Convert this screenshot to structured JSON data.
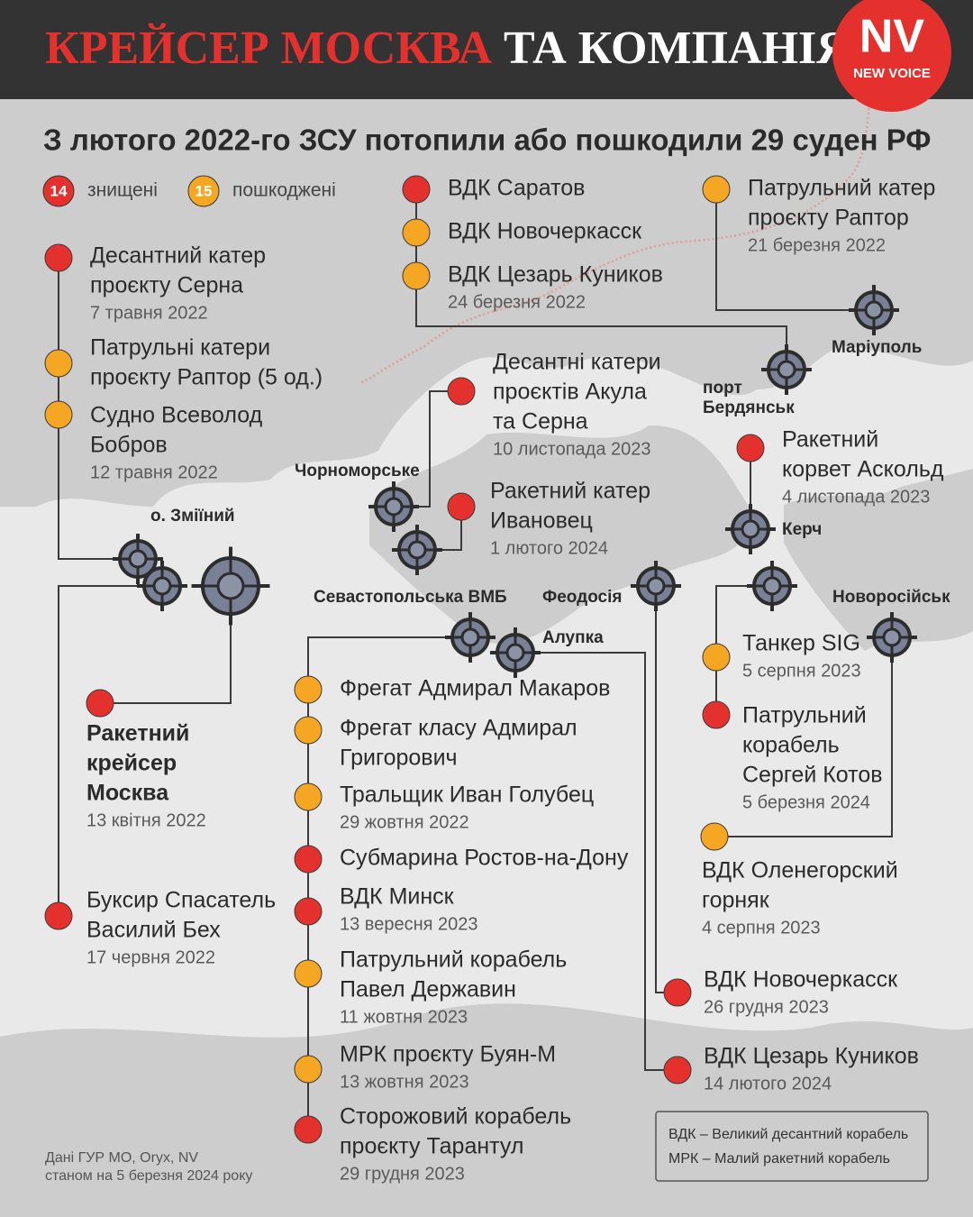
{
  "header": {
    "title_red": "КРЕЙСЕР МОСКВА",
    "title_white": "ТА КОМПАНІЯ",
    "logo": "NV",
    "logo_sub": "NEW VOICE"
  },
  "subtitle": "З лютого 2022-го ЗСУ потопили або пошкодили 29 суден РФ",
  "legend": [
    {
      "count": 14,
      "label": "знищені",
      "color": "#e5312e"
    },
    {
      "count": 15,
      "label": "пошкоджені",
      "color": "#f5a623"
    }
  ],
  "places": [
    {
      "lines": [
        "Маріуполь"
      ]
    },
    {
      "lines": [
        "порт",
        "Бердянськ"
      ]
    },
    {
      "lines": [
        "Чорноморське"
      ]
    },
    {
      "lines": [
        "о. Зміїний"
      ]
    },
    {
      "lines": [
        "Керч"
      ]
    },
    {
      "lines": [
        "Севастопольська ВМБ"
      ]
    },
    {
      "lines": [
        "Феодосія"
      ]
    },
    {
      "lines": [
        "Алупка"
      ]
    },
    {
      "lines": [
        "Новоросійськ"
      ]
    }
  ],
  "ships": [
    {
      "lines": [
        "Десантний катер",
        "проєкту Серна"
      ],
      "date": "7 травня 2022",
      "color": "#e5312e"
    },
    {
      "lines": [
        "Патрульні катери",
        "проєкту Раптор (5 од.)"
      ],
      "color": "#f5a623"
    },
    {
      "lines": [
        "Судно Всеволод",
        "Бобров"
      ],
      "date": "12 травня 2022",
      "color": "#f5a623"
    },
    {
      "lines": [
        "Ракетний",
        "крейсер",
        "Москва"
      ],
      "date": "13 квітня 2022",
      "color": "#e5312e",
      "bold": true
    },
    {
      "lines": [
        "Буксир Спасатель",
        "Василий Бех"
      ],
      "date": "17 червня 2022",
      "color": "#e5312e"
    },
    {
      "lines": [
        "ВДК Саратов"
      ],
      "color": "#e5312e"
    },
    {
      "lines": [
        "ВДК Новочеркасск"
      ],
      "color": "#f5a623"
    },
    {
      "lines": [
        "ВДК Цезарь Куников"
      ],
      "date": "24 березня 2022",
      "color": "#f5a623"
    },
    {
      "lines": [
        "Патрульний катер",
        "проєкту Раптор"
      ],
      "date": "21 березня 2022",
      "color": "#f5a623"
    },
    {
      "lines": [
        "Десантні катери",
        "проєктів Акула",
        "та Серна"
      ],
      "date": "10 листопада 2023",
      "color": "#e5312e"
    },
    {
      "lines": [
        "Ракетний катер",
        "Ивановец"
      ],
      "date": "1 лютого 2024",
      "color": "#e5312e"
    },
    {
      "lines": [
        "Ракетний",
        "корвет Аскольд"
      ],
      "date": "4 листопада 2023",
      "color": "#e5312e"
    },
    {
      "lines": [
        "Фрегат Адмирал Макаров"
      ],
      "color": "#f5a623"
    },
    {
      "lines": [
        "Фрегат класу Адмирал",
        "Григорович"
      ],
      "color": "#f5a623"
    },
    {
      "lines": [
        "Тральщик Иван Голубец"
      ],
      "date": "29 жовтня 2022",
      "color": "#f5a623"
    },
    {
      "lines": [
        "Субмарина Ростов-на-Дону"
      ],
      "color": "#e5312e"
    },
    {
      "lines": [
        "ВДК Минск"
      ],
      "date": "13 вересня 2023",
      "color": "#e5312e"
    },
    {
      "lines": [
        "Патрульний корабель",
        "Павел Державин"
      ],
      "date": "11 жовтня 2023",
      "color": "#f5a623"
    },
    {
      "lines": [
        "МРК проєкту Буян-М"
      ],
      "date": "13 жовтня 2023",
      "color": "#f5a623"
    },
    {
      "lines": [
        "Сторожовий корабель",
        "проєкту Тарантул"
      ],
      "date": "29 грудня 2023",
      "color": "#e5312e"
    },
    {
      "lines": [
        "Танкер SIG"
      ],
      "date": "5 серпня 2023",
      "color": "#f5a623"
    },
    {
      "lines": [
        "Патрульний",
        "корабель",
        "Сергей Котов"
      ],
      "date": "5 березня 2024",
      "color": "#e5312e"
    },
    {
      "lines": [
        "ВДК Оленегорский",
        "горняк"
      ],
      "date": "4 серпня 2023",
      "color": "#f5a623"
    },
    {
      "lines": [
        "ВДК Новочеркасск"
      ],
      "date": "26 грудня 2023",
      "color": "#e5312e"
    },
    {
      "lines": [
        "ВДК Цезарь Куников"
      ],
      "date": "14 лютого 2024",
      "color": "#e5312e"
    }
  ],
  "source": [
    "Дані ГУР МО, Oryx, NV",
    "станом на 5 березня 2024 року"
  ],
  "glossary": [
    "ВДК – Великий десантний корабель",
    "МРК – Малий ракетний корабель"
  ]
}
